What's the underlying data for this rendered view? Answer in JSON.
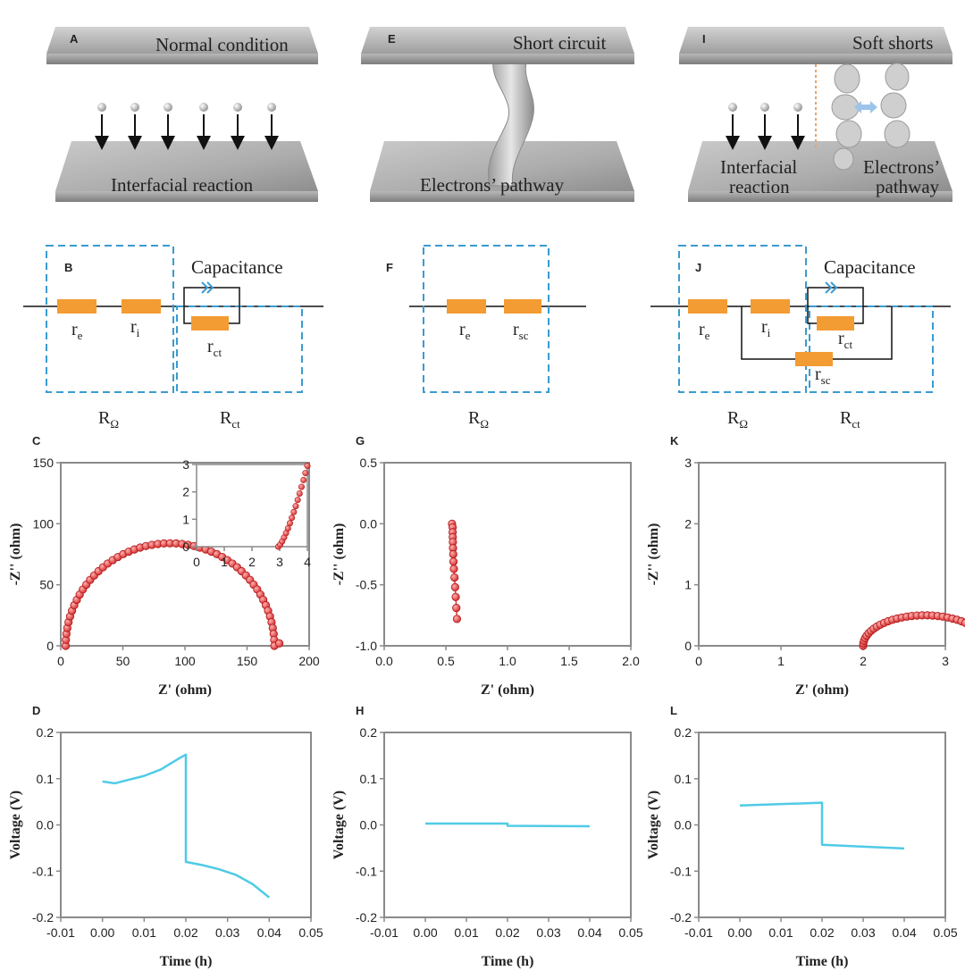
{
  "panels": {
    "A": {
      "letter": "A",
      "title": "Normal condition",
      "bottom": "Interfacial reaction"
    },
    "E": {
      "letter": "E",
      "title": "Short circuit",
      "bottom": "Electrons’ pathway"
    },
    "I": {
      "letter": "I",
      "title": "Soft shorts",
      "left_1": "Interfacial",
      "left_2": "reaction",
      "right_1": "Electrons’",
      "right_2": "pathway"
    }
  },
  "circuits": {
    "B": {
      "letter": "B",
      "capacitance": "Capacitance",
      "r1": "r",
      "r1_sub": "e",
      "r2": "r",
      "r2_sub": "i",
      "rct": "r",
      "rct_sub": "ct",
      "box1": "R",
      "box1_sub": "Ω",
      "box2": "R",
      "box2_sub": "ct"
    },
    "F": {
      "letter": "F",
      "r1": "r",
      "r1_sub": "e",
      "r2": "r",
      "r2_sub": "sc",
      "box1": "R",
      "box1_sub": "Ω"
    },
    "J": {
      "letter": "J",
      "capacitance": "Capacitance",
      "r1": "r",
      "r1_sub": "e",
      "r2": "r",
      "r2_sub": "i",
      "rct": "r",
      "rct_sub": "ct",
      "rsc": "r",
      "rsc_sub": "sc",
      "box1": "R",
      "box1_sub": "Ω",
      "box2": "R",
      "box2_sub": "ct"
    }
  },
  "colors": {
    "orange": "#f39c33",
    "dashed": "#3a9bd0",
    "marker": "#e23c3c",
    "line": "#4fcbe6",
    "axis": "#8a8a8a",
    "plate": "#a7a7a7"
  },
  "chart_data": [
    {
      "id": "C",
      "letter": "C",
      "type": "scatter",
      "xlabel": "Z' (ohm)",
      "ylabel": "-Z'' (ohm)",
      "xlim": [
        0,
        200
      ],
      "ylim": [
        0,
        150
      ],
      "xticks": [
        0,
        50,
        100,
        150,
        200
      ],
      "yticks": [
        0,
        50,
        100,
        150
      ],
      "semicircle": {
        "center": 88,
        "radius": 84,
        "count": 55
      },
      "extra_points": [
        [
          176,
          2
        ]
      ],
      "inset": {
        "xlim": [
          0,
          4
        ],
        "ylim": [
          0,
          3
        ],
        "xticks": [
          0,
          1,
          2,
          3,
          4
        ],
        "yticks": [
          0,
          1,
          2,
          3
        ],
        "points_from_x": 2.95,
        "points_to_x": 4.0
      }
    },
    {
      "id": "G",
      "letter": "G",
      "type": "scatter",
      "xlabel": "Z' (ohm)",
      "ylabel": "-Z'' (ohm)",
      "xlim": [
        0,
        2
      ],
      "ylim": [
        -1.0,
        0.5
      ],
      "xticks": [
        0.0,
        0.5,
        1.0,
        1.5,
        2.0
      ],
      "yticks": [
        -1.0,
        -0.5,
        0.0,
        0.5
      ],
      "points": [
        [
          0.55,
          0.0
        ],
        [
          0.555,
          -0.03
        ],
        [
          0.555,
          -0.07
        ],
        [
          0.556,
          -0.11
        ],
        [
          0.557,
          -0.15
        ],
        [
          0.558,
          -0.2
        ],
        [
          0.56,
          -0.25
        ],
        [
          0.562,
          -0.31
        ],
        [
          0.565,
          -0.37
        ],
        [
          0.57,
          -0.44
        ],
        [
          0.575,
          -0.52
        ],
        [
          0.58,
          -0.6
        ],
        [
          0.585,
          -0.69
        ],
        [
          0.59,
          -0.78
        ]
      ]
    },
    {
      "id": "K",
      "letter": "K",
      "type": "scatter",
      "xlabel": "Z' (ohm)",
      "ylabel": "-Z'' (ohm)",
      "xlim": [
        0,
        3
      ],
      "ylim": [
        0,
        3
      ],
      "xticks": [
        0,
        1,
        2,
        3
      ],
      "yticks": [
        0,
        1,
        2,
        3
      ],
      "semicircle": {
        "center": 2.75,
        "radius": 0.75,
        "ry": 0.5,
        "count": 38
      }
    },
    {
      "id": "D",
      "letter": "D",
      "type": "line",
      "xlabel": "Time (h)",
      "ylabel": "Voltage (V)",
      "xlim": [
        -0.01,
        0.05
      ],
      "ylim": [
        -0.2,
        0.2
      ],
      "xticks": [
        -0.01,
        0.0,
        0.01,
        0.02,
        0.03,
        0.04,
        0.05
      ],
      "yticks": [
        -0.2,
        -0.1,
        0.0,
        0.1,
        0.2
      ],
      "points": [
        [
          0.0,
          0.094
        ],
        [
          0.003,
          0.09
        ],
        [
          0.006,
          0.097
        ],
        [
          0.01,
          0.106
        ],
        [
          0.014,
          0.12
        ],
        [
          0.018,
          0.142
        ],
        [
          0.02,
          0.152
        ],
        [
          0.02,
          -0.08
        ],
        [
          0.024,
          -0.087
        ],
        [
          0.028,
          -0.096
        ],
        [
          0.032,
          -0.108
        ],
        [
          0.036,
          -0.128
        ],
        [
          0.04,
          -0.157
        ]
      ]
    },
    {
      "id": "H",
      "letter": "H",
      "type": "line",
      "xlabel": "Time (h)",
      "ylabel": "Voltage (V)",
      "xlim": [
        -0.01,
        0.05
      ],
      "ylim": [
        -0.2,
        0.2
      ],
      "xticks": [
        -0.01,
        0.0,
        0.01,
        0.02,
        0.03,
        0.04,
        0.05
      ],
      "yticks": [
        -0.2,
        -0.1,
        0.0,
        0.1,
        0.2
      ],
      "points": [
        [
          0.0,
          0.003
        ],
        [
          0.02,
          0.003
        ],
        [
          0.02,
          -0.002
        ],
        [
          0.04,
          -0.003
        ]
      ]
    },
    {
      "id": "L",
      "letter": "L",
      "type": "line",
      "xlabel": "Time (h)",
      "ylabel": "Voltage (V)",
      "xlim": [
        -0.01,
        0.05
      ],
      "ylim": [
        -0.2,
        0.2
      ],
      "xticks": [
        -0.01,
        0.0,
        0.01,
        0.02,
        0.03,
        0.04,
        0.05
      ],
      "yticks": [
        -0.2,
        -0.1,
        0.0,
        0.1,
        0.2
      ],
      "points": [
        [
          0.0,
          0.042
        ],
        [
          0.02,
          0.048
        ],
        [
          0.02,
          -0.043
        ],
        [
          0.04,
          -0.051
        ]
      ]
    }
  ]
}
